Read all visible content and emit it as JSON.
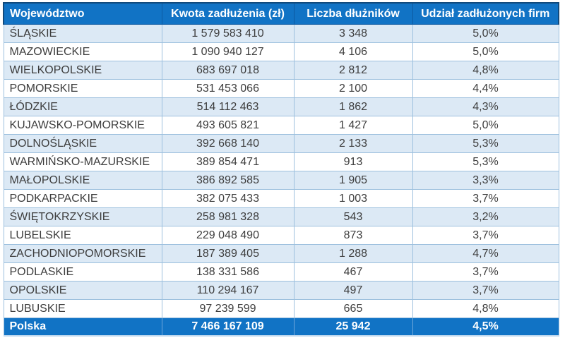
{
  "chart_data": {
    "type": "table",
    "columns": [
      "Województwo",
      "Kwota zadłużenia (zł)",
      "Liczba dłużników",
      "Udział zadłużonych firm"
    ],
    "rows": [
      {
        "name": "ŚLĄSKIE",
        "amount": "1 579 583 410",
        "debtors": "3 348",
        "share": "5,0%"
      },
      {
        "name": "MAZOWIECKIE",
        "amount": "1 090 940 127",
        "debtors": "4 106",
        "share": "5,0%"
      },
      {
        "name": "WIELKOPOLSKIE",
        "amount": "683 697 018",
        "debtors": "2 812",
        "share": "4,8%"
      },
      {
        "name": "POMORSKIE",
        "amount": "531 453 066",
        "debtors": "2 100",
        "share": "4,4%"
      },
      {
        "name": "ŁÓDZKIE",
        "amount": "514 112 463",
        "debtors": "1 862",
        "share": "4,3%"
      },
      {
        "name": "KUJAWSKO-POMORSKIE",
        "amount": "493 605 821",
        "debtors": "1 427",
        "share": "5,0%"
      },
      {
        "name": "DOLNOŚLĄSKIE",
        "amount": "392 668 140",
        "debtors": "2 133",
        "share": "5,3%"
      },
      {
        "name": "WARMIŃSKO-MAZURSKIE",
        "amount": "389 854 471",
        "debtors": "913",
        "share": "5,3%"
      },
      {
        "name": "MAŁOPOLSKIE",
        "amount": "386 892 585",
        "debtors": "1 905",
        "share": "3,3%"
      },
      {
        "name": "PODKARPACKIE",
        "amount": "382 075 433",
        "debtors": "1 003",
        "share": "3,7%"
      },
      {
        "name": "ŚWIĘTOKRZYSKIE",
        "amount": "258 981 328",
        "debtors": "543",
        "share": "3,2%"
      },
      {
        "name": "LUBELSKIE",
        "amount": "229 048 490",
        "debtors": "873",
        "share": "3,7%"
      },
      {
        "name": "ZACHODNIOPOMORSKIE",
        "amount": "187 389 405",
        "debtors": "1 288",
        "share": "4,7%"
      },
      {
        "name": "PODLASKIE",
        "amount": "138 331 586",
        "debtors": "467",
        "share": "3,7%"
      },
      {
        "name": "OPOLSKIE",
        "amount": "110 294 167",
        "debtors": "497",
        "share": "3,7%"
      },
      {
        "name": "LUBUSKIE",
        "amount": "97 239 599",
        "debtors": "665",
        "share": "4,8%"
      }
    ],
    "footer": {
      "name": "Polska",
      "amount": "7 466 167 109",
      "debtors": "25 942",
      "share": "4,5%"
    }
  },
  "colors": {
    "header_background": "#1173C5",
    "header_text": "#ffffff",
    "header_border": "#114A7C",
    "band_row_background": "#DCE9F5",
    "plain_row_background": "#ffffff",
    "grid_line": "#9DC0DE",
    "body_text": "#3d3d3d",
    "footer_background": "#1173C5",
    "footer_text": "#ffffff"
  }
}
